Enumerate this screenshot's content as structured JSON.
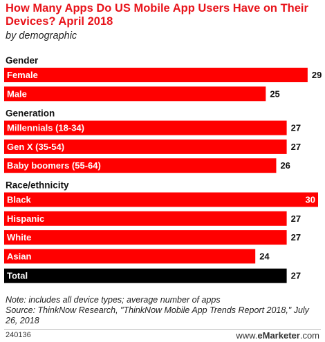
{
  "header": {
    "title": "How Many Apps Do US Mobile App Users Have on Their Devices? April 2018",
    "subtitle": "by demographic"
  },
  "chart_data": {
    "type": "bar",
    "orientation": "horizontal",
    "title": "How Many Apps Do US Mobile App Users Have on Their Devices? April 2018",
    "subtitle": "by demographic",
    "xlim": [
      0,
      30
    ],
    "grid": false,
    "legend": "none",
    "bar_color": "#ff0000",
    "total_color": "#000000",
    "groups": [
      {
        "label": "Gender",
        "bars": [
          {
            "label": "Female",
            "value": 29
          },
          {
            "label": "Male",
            "value": 25
          }
        ]
      },
      {
        "label": "Generation",
        "bars": [
          {
            "label": "Millennials (18-34)",
            "value": 27
          },
          {
            "label": "Gen X (35-54)",
            "value": 27
          },
          {
            "label": "Baby boomers (55-64)",
            "value": 26
          }
        ]
      },
      {
        "label": "Race/ethnicity",
        "bars": [
          {
            "label": "Black",
            "value": 30
          },
          {
            "label": "Hispanic",
            "value": 27
          },
          {
            "label": "White",
            "value": 27
          },
          {
            "label": "Asian",
            "value": 24
          }
        ]
      },
      {
        "label": "",
        "bars": [
          {
            "label": "Total",
            "value": 27,
            "highlight": true
          }
        ]
      }
    ]
  },
  "footer": {
    "note": "Note: includes all device types; average number of apps",
    "source": "Source: ThinkNow Research, \"ThinkNow Mobile App Trends Report 2018,\" July 26, 2018",
    "chart_id": "240136",
    "brand_prefix": "www.",
    "brand_name": "eMarketer",
    "brand_suffix": ".com"
  }
}
